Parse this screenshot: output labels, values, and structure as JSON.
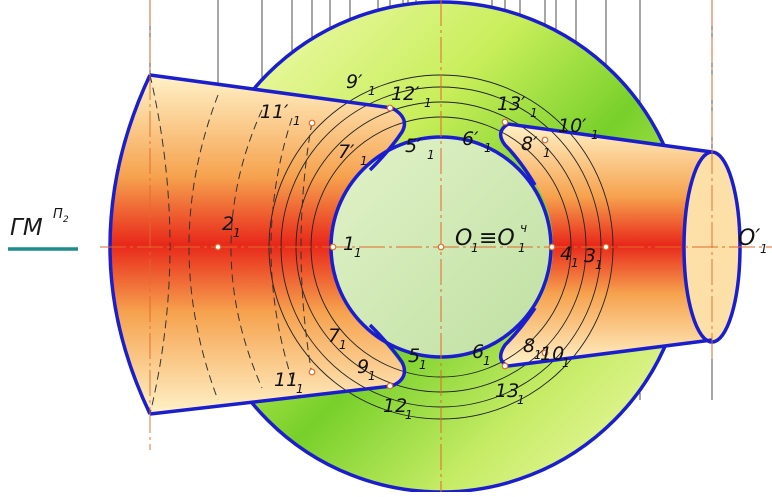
{
  "colors": {
    "outline": "#1a1ecc",
    "axis": "#e06a2a",
    "gm_underline": "#1f8c8c",
    "sphere_light": "#f6fbb0",
    "sphere_green": "#7fd42a",
    "cone_center": "#e8281a",
    "cone_edge": "#fff0c8",
    "inner_disk": "#cfe8b8"
  },
  "plane_label": {
    "main": "ГМ",
    "sup": "П",
    "sup_sub": "2"
  },
  "center_label": {
    "left": "O",
    "left_sub": "1",
    "equiv": "≡O",
    "right_sub": "1",
    "right_sup": "ч"
  },
  "apex_label": {
    "main": "O′",
    "sub": "1"
  },
  "points": [
    {
      "id": "1",
      "main": "1",
      "sub": "1"
    },
    {
      "id": "2",
      "main": "2",
      "sub": "1"
    },
    {
      "id": "3",
      "main": "3",
      "sub": "1"
    },
    {
      "id": "4",
      "main": "4",
      "sub": "1"
    },
    {
      "id": "5",
      "main": "5",
      "sub": "1"
    },
    {
      "id": "5p",
      "main": "5′",
      "sub": "1"
    },
    {
      "id": "6",
      "main": "6",
      "sub": "1"
    },
    {
      "id": "6p",
      "main": "6′",
      "sub": "1"
    },
    {
      "id": "7",
      "main": "7",
      "sub": "1"
    },
    {
      "id": "7p",
      "main": "7′",
      "sub": "1"
    },
    {
      "id": "8",
      "main": "8",
      "sub": "1"
    },
    {
      "id": "8p",
      "main": "8′",
      "sub": "1"
    },
    {
      "id": "9",
      "main": "9",
      "sub": "1"
    },
    {
      "id": "9p",
      "main": "9′",
      "sub": "1"
    },
    {
      "id": "10",
      "main": "10",
      "sub": "1"
    },
    {
      "id": "10p",
      "main": "10′",
      "sub": "1"
    },
    {
      "id": "11",
      "main": "11",
      "sub": "1"
    },
    {
      "id": "11p",
      "main": "11′",
      "sub": "1"
    },
    {
      "id": "12",
      "main": "12",
      "sub": "1"
    },
    {
      "id": "12p",
      "main": "12′",
      "sub": "1"
    },
    {
      "id": "13",
      "main": "13",
      "sub": "1"
    },
    {
      "id": "13p",
      "main": "13′",
      "sub": "1"
    }
  ]
}
